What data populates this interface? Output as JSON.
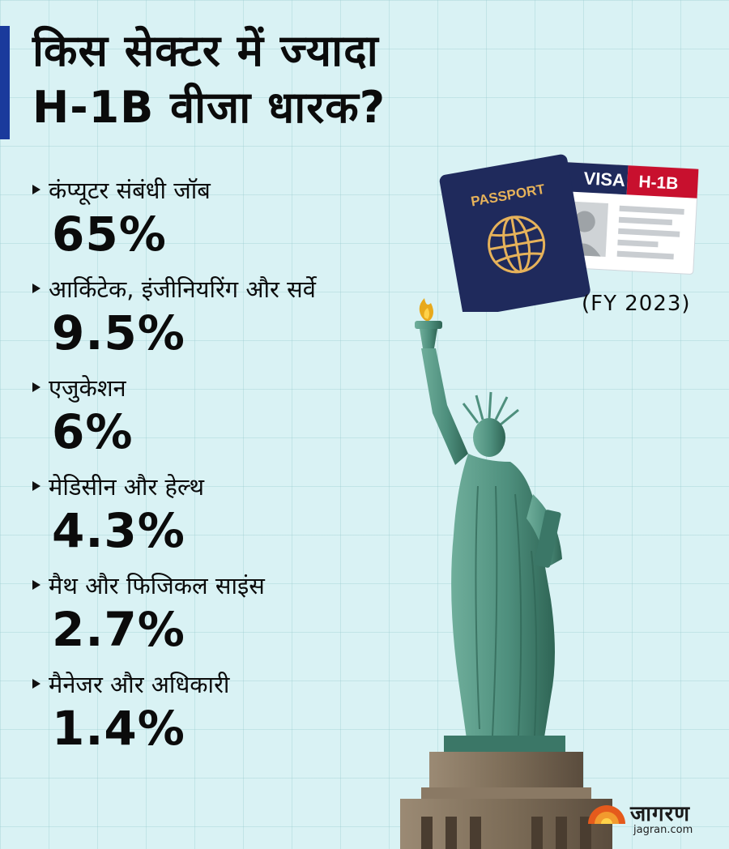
{
  "title": {
    "line1": "किस सेक्टर में ज्यादा",
    "line2": "H-1B वीजा धारक?"
  },
  "items": [
    {
      "label": "कंप्यूटर संबंधी जॉब",
      "value": "65%"
    },
    {
      "label": "आर्किटेक, इंजीनियरिंग और सर्वे",
      "value": "9.5%"
    },
    {
      "label": "एजुकेशन",
      "value": "6%"
    },
    {
      "label": "मेडिसीन और हेल्थ",
      "value": "4.3%"
    },
    {
      "label": "मैथ और फिजिकल साइंस",
      "value": "2.7%"
    },
    {
      "label": "मैनेजर और अधिकारी",
      "value": "1.4%"
    }
  ],
  "fiscal_year": "(FY 2023)",
  "passport": {
    "label": "PASSPORT",
    "icon": "globe-icon"
  },
  "visa": {
    "label": "VISA",
    "type": "H-1B"
  },
  "brand": {
    "name": "जागरण",
    "url": "jagran.com"
  },
  "colors": {
    "background": "#d9f2f4",
    "accent": "#1a3a9c",
    "passport": "#1f2a5c",
    "visa_red": "#c8102e",
    "statue": "#4e8f7d"
  }
}
